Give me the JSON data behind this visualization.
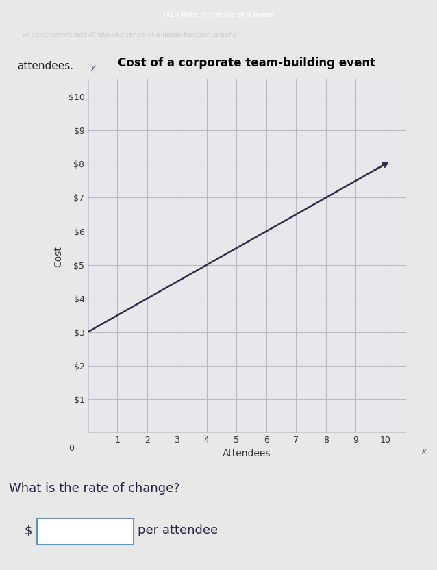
{
  "title": "Cost of a corporate team-building event",
  "xlabel": "Attendees",
  "ylabel": "Cost",
  "xlim": [
    0,
    10.7
  ],
  "ylim": [
    0,
    10.5
  ],
  "xticks": [
    0,
    1,
    2,
    3,
    4,
    5,
    6,
    7,
    8,
    9,
    10
  ],
  "yticks": [
    1,
    2,
    3,
    4,
    5,
    6,
    7,
    8,
    9,
    10
  ],
  "ytick_labels": [
    "$1",
    "$2",
    "$3",
    "$4",
    "$5",
    "$6",
    "$7",
    "$8",
    "$9",
    "$10"
  ],
  "line_x": [
    0,
    10
  ],
  "line_y": [
    3,
    8
  ],
  "line_color": "#2c2c4e",
  "line_width": 1.8,
  "grid_color": "#b8b8c8",
  "plot_bg_color": "#e8e8ec",
  "page_bg_color": "#e8e8e8",
  "browser_bar_color": "#555555",
  "browser_tab_color": "#888888",
  "title_fontsize": 12,
  "axis_label_fontsize": 10,
  "tick_fontsize": 9,
  "question_text": "What is the rate of change?",
  "answer_prefix": "$",
  "answer_suffix": "per attendee",
  "header_url": "ixl.com/math/grade-8/rate-of-change-of-a-linear-function-graphs",
  "header_text": "attendees.",
  "browser_tab_text": "IXL | Rate of change of a linear"
}
